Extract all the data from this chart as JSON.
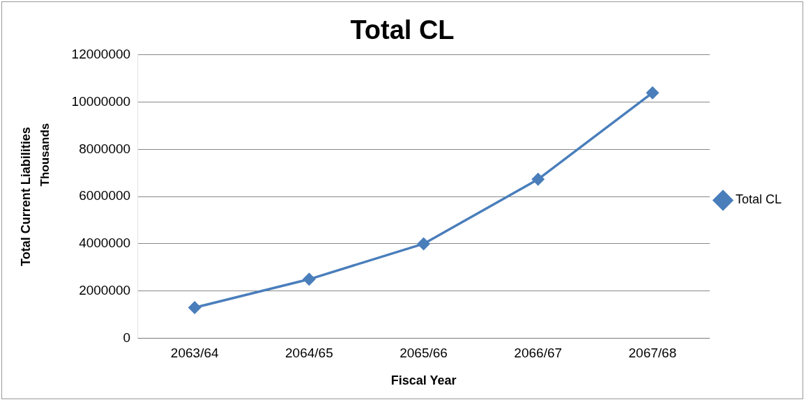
{
  "chart_data": {
    "type": "line",
    "title": "Total CL",
    "xlabel": "Fiscal Year",
    "ylabel": "Total Current Liabilities",
    "annotations": [
      "Thousands"
    ],
    "categories": [
      "2063/64",
      "2064/65",
      "2065/66",
      "2066/67",
      "2067/68"
    ],
    "series": [
      {
        "name": "Total CL",
        "color": "#4a7ebb",
        "values": [
          1300000,
          2500000,
          4000000,
          6730000,
          10390000
        ]
      }
    ],
    "ylim": [
      0,
      12000000
    ],
    "yticks": [
      0,
      2000000,
      4000000,
      6000000,
      8000000,
      10000000,
      12000000
    ],
    "grid": "y",
    "legend": "right",
    "marker": "diamond",
    "line_style": "solid"
  }
}
